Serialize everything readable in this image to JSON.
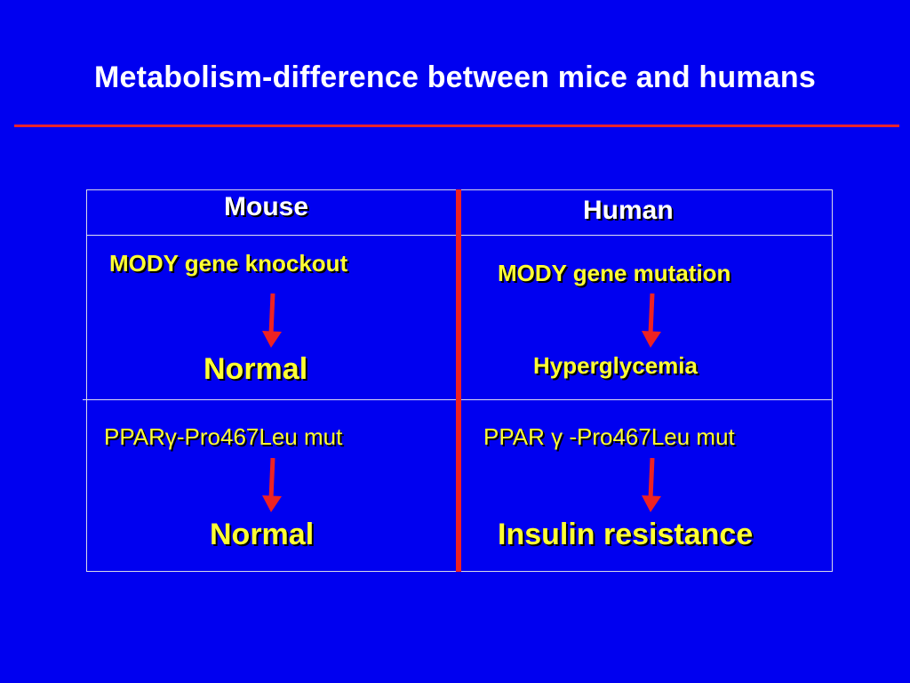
{
  "slide": {
    "title": "Metabolism-difference between mice and humans",
    "accent_color": "#e8242c",
    "background_color": "#0000f0",
    "text_color": "#ffff33"
  },
  "table": {
    "headers": {
      "mouse": "Mouse",
      "human": "Human"
    },
    "row1": {
      "mouse_cause": "MODY gene knockout",
      "mouse_effect": "Normal",
      "human_cause": "MODY gene mutation",
      "human_effect": "Hyperglycemia"
    },
    "row2": {
      "mouse_cause": "PPARγ-Pro467Leu mut",
      "mouse_effect": "Normal",
      "human_cause": "PPAR γ -Pro467Leu mut",
      "human_effect": "Insulin resistance"
    },
    "arrow_icon": "down-arrow-icon"
  }
}
